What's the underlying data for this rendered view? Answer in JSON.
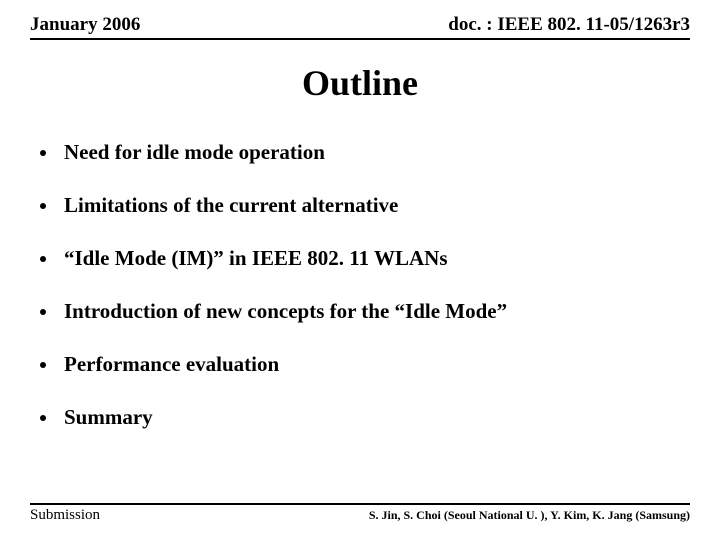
{
  "header": {
    "left": "January 2006",
    "right": "doc. : IEEE 802. 11-05/1263r3"
  },
  "title": "Outline",
  "bullets": [
    "Need for idle mode operation",
    "Limitations of the current alternative",
    "“Idle Mode (IM)” in IEEE 802. 11 WLANs",
    "Introduction of new concepts for the “Idle Mode”",
    "Performance evaluation",
    "Summary"
  ],
  "footer": {
    "left": "Submission",
    "right": "S. Jin, S. Choi (Seoul National U. ), Y. Kim, K. Jang (Samsung)"
  }
}
